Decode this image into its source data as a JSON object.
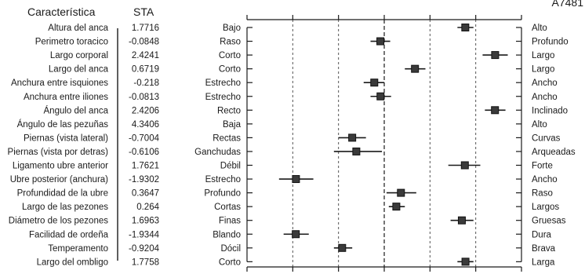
{
  "chart_data": {
    "type": "forest",
    "bull_id": "A7481",
    "headers": {
      "trait": "Característica",
      "value": "STA"
    },
    "x_reference_lines": {
      "dotted": [
        -2,
        -1,
        1,
        2
      ],
      "dashed": [
        0
      ]
    },
    "xlim": [
      -3,
      3
    ],
    "rows": [
      {
        "trait": "Altura del anca",
        "sta": "1.7716",
        "value": 1.7716,
        "low_label": "Bajo",
        "high_label": "Alto",
        "ci": [
          1.6,
          1.95
        ]
      },
      {
        "trait": "Perimetro toracico",
        "sta": "-0.0848",
        "value": -0.0848,
        "low_label": "Raso",
        "high_label": "Profundo",
        "ci": [
          -0.3,
          0.13
        ]
      },
      {
        "trait": "Largo corporal",
        "sta": "2.4241",
        "value": 2.4241,
        "low_label": "Corto",
        "high_label": "Largo",
        "ci": [
          2.15,
          2.7
        ]
      },
      {
        "trait": "Largo del anca",
        "sta": "0.6719",
        "value": 0.6719,
        "low_label": "Corto",
        "high_label": "Largo",
        "ci": [
          0.45,
          0.9
        ]
      },
      {
        "trait": "Anchura entre isquiones",
        "sta": "-0.218",
        "value": -0.218,
        "low_label": "Estrecho",
        "high_label": "Ancho",
        "ci": [
          -0.45,
          0.0
        ]
      },
      {
        "trait": "Anchura entre iliones",
        "sta": "-0.0813",
        "value": -0.0813,
        "low_label": "Estrecho",
        "high_label": "Ancho",
        "ci": [
          -0.3,
          0.15
        ]
      },
      {
        "trait": "Ángulo del anca",
        "sta": "2.4206",
        "value": 2.4206,
        "low_label": "Recto",
        "high_label": "Inclinado",
        "ci": [
          2.2,
          2.65
        ]
      },
      {
        "trait": "Ángulo de las pezuñas",
        "sta": "4.3406",
        "value": 4.3406,
        "low_label": "Baja",
        "high_label": "Alto",
        "ci": null
      },
      {
        "trait": "Piernas (vista lateral)",
        "sta": "-0.7004",
        "value": -0.7004,
        "low_label": "Rectas",
        "high_label": "Curvas",
        "ci": [
          -1.0,
          -0.4
        ]
      },
      {
        "trait": "Piernas (vista por detras)",
        "sta": "-0.6106",
        "value": -0.6106,
        "low_label": "Ganchudas",
        "high_label": "Arqueadas",
        "ci": [
          -1.1,
          -0.05
        ]
      },
      {
        "trait": "Ligamento ubre anterior",
        "sta": "1.7621",
        "value": 1.7621,
        "low_label": "Débil",
        "high_label": "Forte",
        "ci": [
          1.4,
          2.1
        ]
      },
      {
        "trait": "Ubre posterior (anchura)",
        "sta": "-1.9302",
        "value": -1.9302,
        "low_label": "Estrecho",
        "high_label": "Ancho",
        "ci": [
          -2.3,
          -1.55
        ]
      },
      {
        "trait": "Profundidad de la ubre",
        "sta": "0.3647",
        "value": 0.3647,
        "low_label": "Profundo",
        "high_label": "Raso",
        "ci": [
          0.05,
          0.7
        ]
      },
      {
        "trait": "Largo de las pezones",
        "sta": "0.264",
        "value": 0.264,
        "low_label": "Cortas",
        "high_label": "Largos",
        "ci": [
          0.1,
          0.45
        ]
      },
      {
        "trait": "Diámetro de los pezones",
        "sta": "1.6963",
        "value": 1.6963,
        "low_label": "Finas",
        "high_label": "Gruesas",
        "ci": [
          1.45,
          1.95
        ]
      },
      {
        "trait": "Facilidad de ordeña",
        "sta": "-1.9344",
        "value": -1.9344,
        "low_label": "Blando",
        "high_label": "Dura",
        "ci": [
          -2.2,
          -1.65
        ]
      },
      {
        "trait": "Temperamento",
        "sta": "-0.9204",
        "value": -0.9204,
        "low_label": "Dócil",
        "high_label": "Brava",
        "ci": [
          -1.1,
          -0.7
        ]
      },
      {
        "trait": "Largo del ombligo",
        "sta": "1.7758",
        "value": 1.7758,
        "low_label": "Corto",
        "high_label": "Larga",
        "ci": [
          1.6,
          1.95
        ]
      }
    ]
  }
}
